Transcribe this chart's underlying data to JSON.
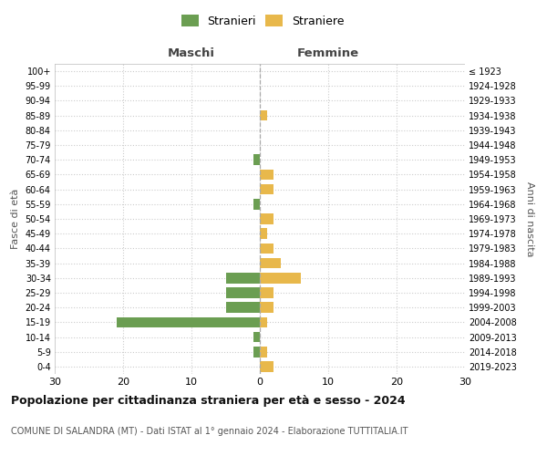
{
  "age_groups": [
    "0-4",
    "5-9",
    "10-14",
    "15-19",
    "20-24",
    "25-29",
    "30-34",
    "35-39",
    "40-44",
    "45-49",
    "50-54",
    "55-59",
    "60-64",
    "65-69",
    "70-74",
    "75-79",
    "80-84",
    "85-89",
    "90-94",
    "95-99",
    "100+"
  ],
  "birth_years": [
    "2019-2023",
    "2014-2018",
    "2009-2013",
    "2004-2008",
    "1999-2003",
    "1994-1998",
    "1989-1993",
    "1984-1988",
    "1979-1983",
    "1974-1978",
    "1969-1973",
    "1964-1968",
    "1959-1963",
    "1954-1958",
    "1949-1953",
    "1944-1948",
    "1939-1943",
    "1934-1938",
    "1929-1933",
    "1924-1928",
    "≤ 1923"
  ],
  "maschi": [
    0,
    1,
    1,
    21,
    5,
    5,
    5,
    0,
    0,
    0,
    0,
    1,
    0,
    0,
    1,
    0,
    0,
    0,
    0,
    0,
    0
  ],
  "femmine": [
    2,
    1,
    0,
    1,
    2,
    2,
    6,
    3,
    2,
    1,
    2,
    0,
    2,
    2,
    0,
    0,
    0,
    1,
    0,
    0,
    0
  ],
  "color_maschi": "#6b9e52",
  "color_femmine": "#e8b84b",
  "xlim": 30,
  "title": "Popolazione per cittadinanza straniera per età e sesso - 2024",
  "subtitle": "COMUNE DI SALANDRA (MT) - Dati ISTAT al 1° gennaio 2024 - Elaborazione TUTTITALIA.IT",
  "ylabel_left": "Fasce di età",
  "ylabel_right": "Anni di nascita",
  "legend_maschi": "Stranieri",
  "legend_femmine": "Straniere",
  "label_maschi": "Maschi",
  "label_femmine": "Femmine",
  "bg_color": "#ffffff",
  "grid_color": "#cccccc"
}
